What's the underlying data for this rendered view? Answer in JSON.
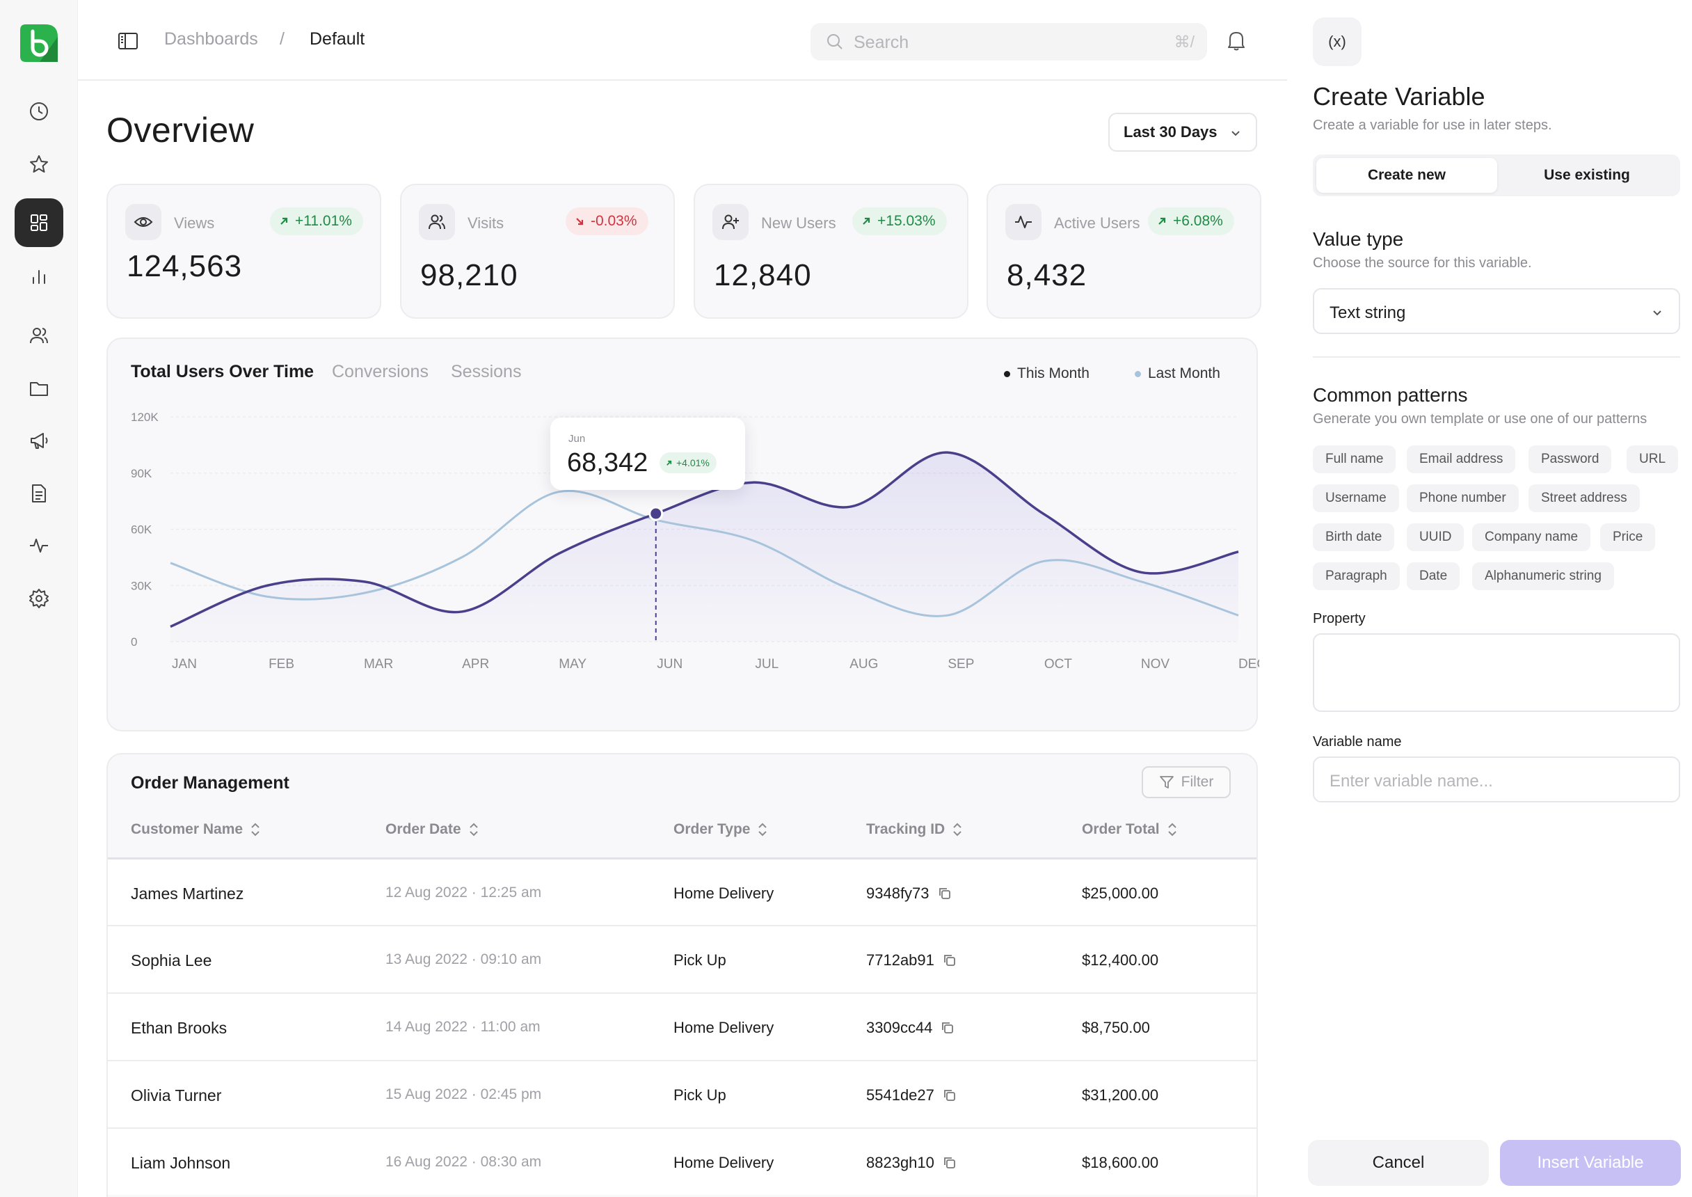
{
  "breadcrumb": {
    "parent": "Dashboards",
    "separator": "/",
    "current": "Default"
  },
  "search": {
    "placeholder": "Search",
    "shortcut": "⌘/"
  },
  "overview": {
    "title": "Overview",
    "range_label": "Last 30 Days"
  },
  "stats": [
    {
      "icon": "eye-icon",
      "label": "Views",
      "change": "+11.01%",
      "trend": "up",
      "value": "124,563"
    },
    {
      "icon": "users-icon",
      "label": "Visits",
      "change": "-0.03%",
      "trend": "down",
      "value": "98,210"
    },
    {
      "icon": "user-plus-icon",
      "label": "New Users",
      "change": "+15.03%",
      "trend": "up",
      "value": "12,840"
    },
    {
      "icon": "activity-icon",
      "label": "Active Users",
      "change": "+6.08%",
      "trend": "up",
      "value": "8,432"
    }
  ],
  "chart_tabs": {
    "active": "Total Users Over Time",
    "tab2": "Conversions",
    "tab3": "Sessions"
  },
  "tooltip": {
    "month": "Jun",
    "value": "68,342",
    "change": "+4.01%"
  },
  "chart_data": {
    "type": "line",
    "x": [
      "JAN",
      "FEB",
      "MAR",
      "APR",
      "MAY",
      "JUN",
      "JUL",
      "AUG",
      "SEP",
      "OCT",
      "NOV",
      "DEC"
    ],
    "ylim": [
      0,
      120000
    ],
    "yticks": [
      "0",
      "30K",
      "60K",
      "90K",
      "120K"
    ],
    "series": [
      {
        "name": "This Month",
        "color": "#4a3f8a",
        "values": [
          8000,
          30000,
          32000,
          16000,
          47000,
          68342,
          85000,
          72000,
          101000,
          68000,
          37000,
          48000
        ]
      },
      {
        "name": "Last Month",
        "color": "#a7c4dc",
        "values": [
          42000,
          24000,
          26000,
          45000,
          80000,
          65000,
          54000,
          28000,
          14000,
          43000,
          32000,
          14000
        ]
      }
    ]
  },
  "orders": {
    "title": "Order Management",
    "filter_label": "Filter",
    "columns": [
      "Customer Name",
      "Order Date",
      "Order Type",
      "Tracking ID",
      "Order Total"
    ],
    "rows": [
      {
        "name": "James Martinez",
        "date": "12 Aug 2022 · 12:25 am",
        "type": "Home Delivery",
        "tracking": "9348fy73",
        "total": "$25,000.00"
      },
      {
        "name": "Sophia Lee",
        "date": "13 Aug 2022 · 09:10 am",
        "type": "Pick Up",
        "tracking": "7712ab91",
        "total": "$12,400.00"
      },
      {
        "name": "Ethan Brooks",
        "date": "14 Aug 2022 · 11:00 am",
        "type": "Home Delivery",
        "tracking": "3309cc44",
        "total": "$8,750.00"
      },
      {
        "name": "Olivia Turner",
        "date": "15 Aug 2022 · 02:45 pm",
        "type": "Pick Up",
        "tracking": "5541de27",
        "total": "$31,200.00"
      },
      {
        "name": "Liam Johnson",
        "date": "16 Aug 2022 · 08:30 am",
        "type": "Home Delivery",
        "tracking": "8823gh10",
        "total": "$18,600.00"
      }
    ]
  },
  "panel": {
    "close_label": "(x)",
    "title": "Create Variable",
    "subtitle": "Create a variable for use in later steps.",
    "seg_create": "Create new",
    "seg_existing": "Use existing",
    "value_type_title": "Value type",
    "value_type_sub": "Choose the source for this variable.",
    "value_type_selected": "Text string",
    "patterns_title": "Common patterns",
    "patterns_sub": "Generate you own template or use one of our patterns",
    "patterns": [
      "Full name",
      "Email address",
      "Password",
      "URL",
      "Username",
      "Phone number",
      "Street address",
      "Birth date",
      "UUID",
      "Company name",
      "Price",
      "Paragraph",
      "Date",
      "Alphanumeric string"
    ],
    "property_label": "Property",
    "variable_name_label": "Variable name",
    "variable_name_placeholder": "Enter variable name...",
    "cancel_label": "Cancel",
    "insert_label": "Insert Variable"
  },
  "colors": {
    "accent": "#4a3f8a",
    "secondary": "#a7c4dc",
    "up": "#1f8b45",
    "down": "#d0343f",
    "insert_disabled": "#c7c0f4",
    "brand": "#2bb24c"
  }
}
